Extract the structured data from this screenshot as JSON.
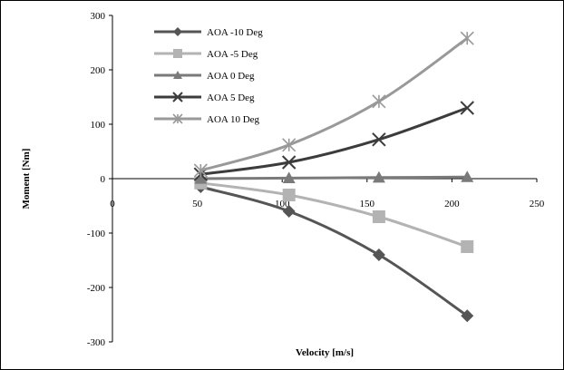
{
  "chart_data": {
    "type": "line",
    "title": "",
    "xlabel": "Velocity [m/s]",
    "ylabel": "Moment [Nm]",
    "xlim": [
      0,
      250
    ],
    "ylim": [
      -300,
      300
    ],
    "xticks": [
      0,
      50,
      100,
      150,
      200,
      250
    ],
    "yticks": [
      -300,
      -200,
      -100,
      0,
      100,
      200,
      300
    ],
    "grid": false,
    "legend_position": "top-left",
    "series": [
      {
        "name": "AOA -10 Deg",
        "marker": "diamond",
        "color": "#555555",
        "x": [
          52,
          104,
          157,
          209
        ],
        "y": [
          -15,
          -60,
          -140,
          -252
        ]
      },
      {
        "name": "AOA -5 Deg",
        "marker": "square",
        "color": "#b3b3b3",
        "x": [
          52,
          104,
          157,
          209
        ],
        "y": [
          -8,
          -30,
          -70,
          -125
        ]
      },
      {
        "name": "AOA 0 Deg",
        "marker": "triangle",
        "color": "#7a7a7a",
        "x": [
          52,
          104,
          157,
          209
        ],
        "y": [
          0,
          1,
          2,
          3
        ]
      },
      {
        "name": "AOA 5 Deg",
        "marker": "x",
        "color": "#3c3c3c",
        "x": [
          52,
          104,
          157,
          209
        ],
        "y": [
          8,
          30,
          72,
          130
        ]
      },
      {
        "name": "AOA 10 Deg",
        "marker": "star",
        "color": "#999999",
        "x": [
          52,
          104,
          157,
          209
        ],
        "y": [
          15,
          62,
          142,
          258
        ]
      }
    ]
  }
}
